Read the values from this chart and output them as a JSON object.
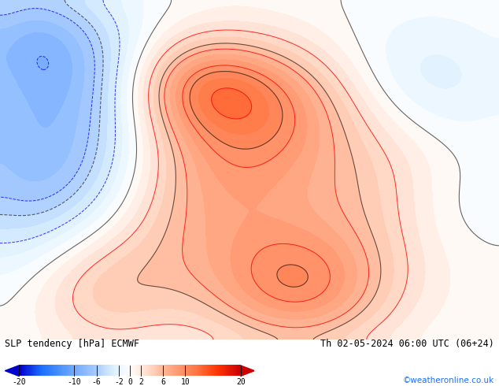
{
  "title_left": "SLP tendency [hPa] ECMWF",
  "title_right": "Th 02-05-2024 06:00 UTC (06+24)",
  "credit": "©weatheronline.co.uk",
  "colorbar_levels": [
    -20,
    -10,
    -6,
    -2,
    0,
    2,
    6,
    10,
    20
  ],
  "colorbar_tick_labels": [
    "-20",
    "-10",
    "-6",
    "-2",
    "0",
    "2",
    "6",
    "10",
    "20"
  ],
  "cmap_stops": [
    [
      0.0,
      "#0000cd"
    ],
    [
      0.1,
      "#1a6fff"
    ],
    [
      0.2,
      "#5599ff"
    ],
    [
      0.35,
      "#aaccff"
    ],
    [
      0.42,
      "#d9eeff"
    ],
    [
      0.5,
      "#ffffff"
    ],
    [
      0.58,
      "#ffddcc"
    ],
    [
      0.65,
      "#ffb899"
    ],
    [
      0.8,
      "#ff7744"
    ],
    [
      0.9,
      "#ff3300"
    ],
    [
      1.0,
      "#cc0000"
    ]
  ],
  "map_bg_color": "#a8d8ea",
  "fig_width": 6.34,
  "fig_height": 4.9,
  "dpi": 100,
  "colorbar_left_arrow_color": "#0000cd",
  "colorbar_right_arrow_color": "#cc0000"
}
